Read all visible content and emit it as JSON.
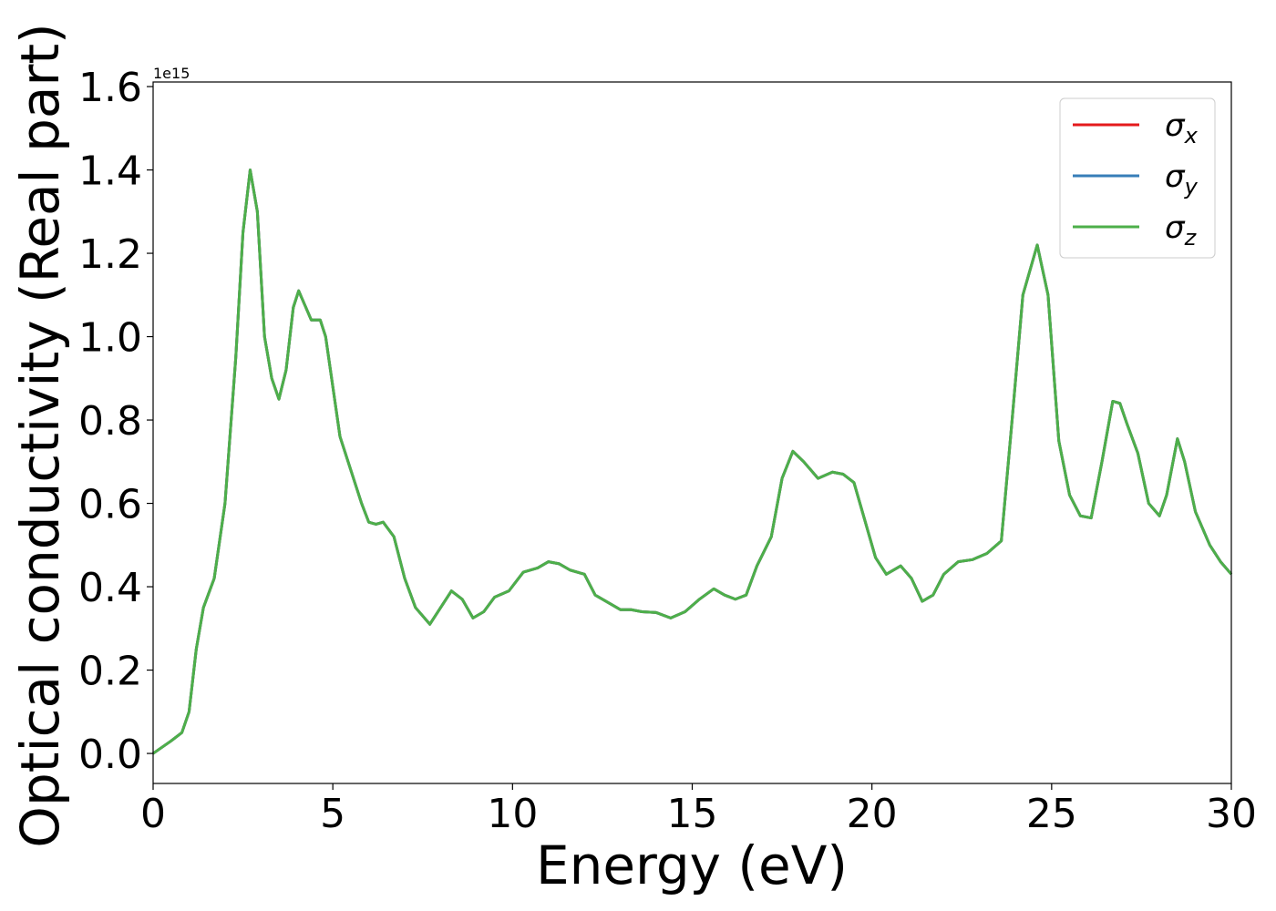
{
  "chart_data": {
    "type": "line",
    "xlabel": "Energy (eV)",
    "ylabel": "Optical conductivity (Real part)",
    "offset_text": "1e15",
    "x": [
      0,
      0.5,
      0.8,
      1.0,
      1.2,
      1.4,
      1.7,
      2.0,
      2.3,
      2.5,
      2.7,
      2.9,
      3.1,
      3.3,
      3.5,
      3.7,
      3.9,
      4.05,
      4.2,
      4.4,
      4.65,
      4.8,
      5.0,
      5.2,
      5.5,
      5.8,
      6.0,
      6.2,
      6.4,
      6.7,
      7.0,
      7.3,
      7.7,
      8.0,
      8.3,
      8.6,
      8.9,
      9.2,
      9.5,
      9.9,
      10.3,
      10.7,
      11.0,
      11.3,
      11.6,
      12.0,
      12.3,
      12.7,
      13.0,
      13.3,
      13.6,
      14.0,
      14.4,
      14.8,
      15.2,
      15.6,
      15.9,
      16.2,
      16.5,
      16.8,
      17.2,
      17.5,
      17.8,
      18.1,
      18.5,
      18.9,
      19.2,
      19.5,
      19.8,
      20.1,
      20.4,
      20.8,
      21.1,
      21.4,
      21.7,
      22.0,
      22.4,
      22.8,
      23.2,
      23.6,
      23.9,
      24.2,
      24.6,
      24.9,
      25.2,
      25.5,
      25.8,
      26.1,
      26.4,
      26.7,
      26.9,
      27.1,
      27.4,
      27.7,
      28.0,
      28.2,
      28.5,
      28.7,
      29.0,
      29.4,
      29.7,
      30.0
    ],
    "series": [
      {
        "name": "σx",
        "color": "#e41a1c",
        "values": [
          0.0,
          0.03,
          0.05,
          0.1,
          0.25,
          0.35,
          0.42,
          0.6,
          0.95,
          1.25,
          1.4,
          1.3,
          1.0,
          0.9,
          0.85,
          0.92,
          1.07,
          1.11,
          1.08,
          1.04,
          1.04,
          1.0,
          0.88,
          0.76,
          0.68,
          0.6,
          0.555,
          0.55,
          0.555,
          0.52,
          0.42,
          0.35,
          0.31,
          0.35,
          0.39,
          0.37,
          0.325,
          0.34,
          0.375,
          0.39,
          0.435,
          0.445,
          0.46,
          0.455,
          0.44,
          0.43,
          0.38,
          0.36,
          0.345,
          0.345,
          0.34,
          0.338,
          0.325,
          0.34,
          0.37,
          0.395,
          0.38,
          0.37,
          0.38,
          0.45,
          0.52,
          0.66,
          0.725,
          0.7,
          0.66,
          0.675,
          0.67,
          0.65,
          0.56,
          0.47,
          0.43,
          0.45,
          0.42,
          0.365,
          0.38,
          0.43,
          0.46,
          0.465,
          0.48,
          0.51,
          0.8,
          1.1,
          1.22,
          1.1,
          0.75,
          0.62,
          0.57,
          0.565,
          0.7,
          0.845,
          0.84,
          0.79,
          0.72,
          0.6,
          0.57,
          0.62,
          0.755,
          0.7,
          0.58,
          0.5,
          0.46,
          0.43
        ]
      },
      {
        "name": "σy",
        "color": "#377eb8",
        "values": [
          0.0,
          0.03,
          0.05,
          0.1,
          0.25,
          0.35,
          0.42,
          0.6,
          0.95,
          1.25,
          1.4,
          1.3,
          1.0,
          0.9,
          0.85,
          0.92,
          1.07,
          1.11,
          1.08,
          1.04,
          1.04,
          1.0,
          0.88,
          0.76,
          0.68,
          0.6,
          0.555,
          0.55,
          0.555,
          0.52,
          0.42,
          0.35,
          0.31,
          0.35,
          0.39,
          0.37,
          0.325,
          0.34,
          0.375,
          0.39,
          0.435,
          0.445,
          0.46,
          0.455,
          0.44,
          0.43,
          0.38,
          0.36,
          0.345,
          0.345,
          0.34,
          0.338,
          0.325,
          0.34,
          0.37,
          0.395,
          0.38,
          0.37,
          0.38,
          0.45,
          0.52,
          0.66,
          0.725,
          0.7,
          0.66,
          0.675,
          0.67,
          0.65,
          0.56,
          0.47,
          0.43,
          0.45,
          0.42,
          0.365,
          0.38,
          0.43,
          0.46,
          0.465,
          0.48,
          0.51,
          0.8,
          1.1,
          1.22,
          1.1,
          0.75,
          0.62,
          0.57,
          0.565,
          0.7,
          0.845,
          0.84,
          0.79,
          0.72,
          0.6,
          0.57,
          0.62,
          0.755,
          0.7,
          0.58,
          0.5,
          0.46,
          0.43
        ]
      },
      {
        "name": "σz",
        "color": "#4daf4a",
        "values": [
          0.0,
          0.03,
          0.05,
          0.1,
          0.25,
          0.35,
          0.42,
          0.6,
          0.95,
          1.25,
          1.4,
          1.3,
          1.0,
          0.9,
          0.85,
          0.92,
          1.07,
          1.11,
          1.08,
          1.04,
          1.04,
          1.0,
          0.88,
          0.76,
          0.68,
          0.6,
          0.555,
          0.55,
          0.555,
          0.52,
          0.42,
          0.35,
          0.31,
          0.35,
          0.39,
          0.37,
          0.325,
          0.34,
          0.375,
          0.39,
          0.435,
          0.445,
          0.46,
          0.455,
          0.44,
          0.43,
          0.38,
          0.36,
          0.345,
          0.345,
          0.34,
          0.338,
          0.325,
          0.34,
          0.37,
          0.395,
          0.38,
          0.37,
          0.38,
          0.45,
          0.52,
          0.66,
          0.725,
          0.7,
          0.66,
          0.675,
          0.67,
          0.65,
          0.56,
          0.47,
          0.43,
          0.45,
          0.42,
          0.365,
          0.38,
          0.43,
          0.46,
          0.465,
          0.48,
          0.51,
          0.8,
          1.1,
          1.22,
          1.1,
          0.75,
          0.62,
          0.57,
          0.565,
          0.7,
          0.845,
          0.84,
          0.79,
          0.72,
          0.6,
          0.57,
          0.62,
          0.755,
          0.7,
          0.58,
          0.5,
          0.46,
          0.43
        ]
      }
    ],
    "xlim": [
      0,
      30
    ],
    "xticks": [
      0,
      5,
      10,
      15,
      20,
      25,
      30
    ],
    "ylim": [
      -0.072,
      1.611
    ],
    "yticks": [
      {
        "value": 0,
        "label": "0.0"
      },
      {
        "value": 0.2,
        "label": "0.2"
      },
      {
        "value": 0.4,
        "label": "0.4"
      },
      {
        "value": 0.6,
        "label": "0.6"
      },
      {
        "value": 0.8,
        "label": "0.8"
      },
      {
        "value": 1.0,
        "label": "1.0"
      },
      {
        "value": 1.2,
        "label": "1.2"
      },
      {
        "value": 1.4,
        "label": "1.4"
      },
      {
        "value": 1.6,
        "label": "1.6"
      }
    ],
    "grid": false,
    "legend": "upper right"
  }
}
